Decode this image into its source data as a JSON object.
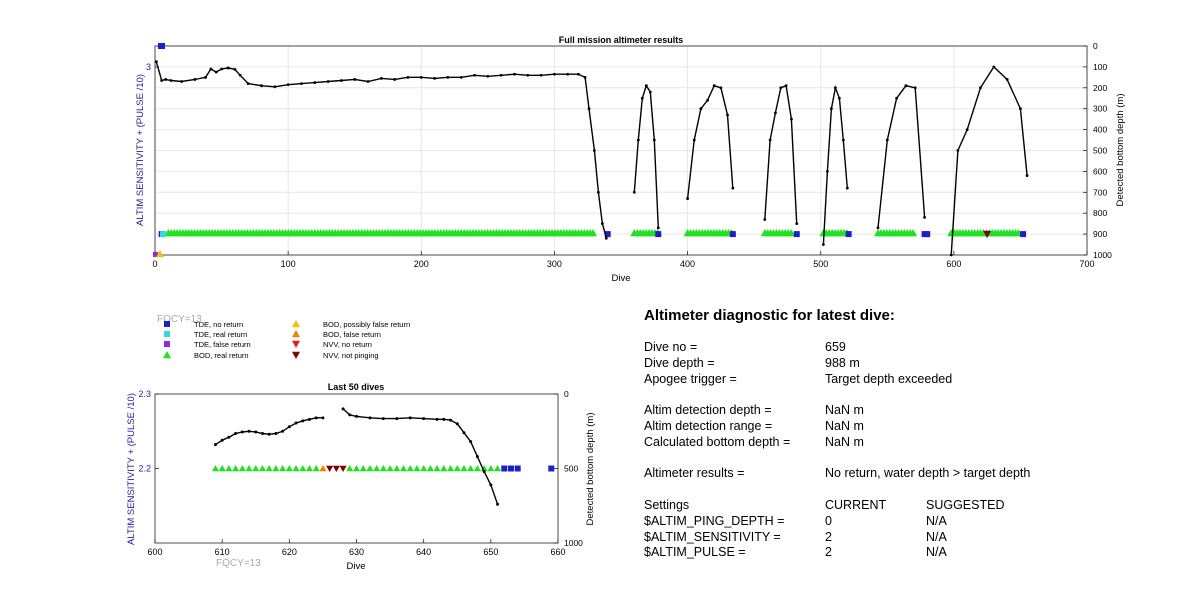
{
  "charts": {
    "top": {
      "title": "Full mission altimeter results",
      "xlabel": "Dive",
      "ylabel_left": "ALTIM SENSITIVITY + (PULSE /10)",
      "ylabel_right": "Detected bottom depth (m)",
      "xticks": [
        "0",
        "100",
        "200",
        "300",
        "400",
        "500",
        "600",
        "700"
      ],
      "yticks_right": [
        "0",
        "100",
        "200",
        "300",
        "400",
        "500",
        "600",
        "700",
        "800",
        "900",
        "1000"
      ],
      "yticks_left": [
        "3"
      ],
      "fqcy": "FQCY=13"
    },
    "bottom": {
      "title": "Last 50 dives",
      "xlabel": "Dive",
      "ylabel_left": "ALTIM SENSITIVITY + (PULSE /10)",
      "ylabel_right": "Detected bottom depth (m)",
      "xticks": [
        "600",
        "610",
        "620",
        "630",
        "640",
        "650",
        "660"
      ],
      "yticks_left": [
        "2.3",
        "2.2"
      ],
      "yticks_right": [
        "0",
        "500",
        "1000"
      ],
      "fqcy": "FQCY=13"
    }
  },
  "legend": [
    {
      "label": "TDE, no return",
      "symbol": "square",
      "color": "#1f1fc8"
    },
    {
      "label": "TDE, real return",
      "symbol": "square",
      "color": "#33d9e0"
    },
    {
      "label": "TDE, false return",
      "symbol": "square",
      "color": "#8a2be2"
    },
    {
      "label": "BOD, real return",
      "symbol": "triangle-up",
      "color": "#22e022"
    },
    {
      "label": "BOD, possibly false return",
      "symbol": "triangle-up",
      "color": "#f0c000"
    },
    {
      "label": "BOD, false return",
      "symbol": "triangle-up",
      "color": "#f08000"
    },
    {
      "label": "NVV, no return",
      "symbol": "triangle-down",
      "color": "#e02020"
    },
    {
      "label": "NVV, not pinging",
      "symbol": "triangle-down",
      "color": "#800000"
    }
  ],
  "colors": {
    "tde_no_return": "#1f1fc8",
    "bod_real": "#22e022",
    "nvv_not_pinging": "#800000",
    "nvv_no_return": "#e02020",
    "bod_false": "#f08000",
    "axis_left": "#1f1fa0",
    "depth_line": "#000000"
  },
  "chart_data": [
    {
      "type": "line",
      "title": "Full mission altimeter results",
      "xlabel": "Dive",
      "ylabel": "Detected bottom depth (m)",
      "xlim": [
        0,
        700
      ],
      "ylim_depth": [
        0,
        1000
      ],
      "depth_inverted": true,
      "grid": true,
      "depth_series": [
        {
          "x": [
            1,
            5,
            8,
            12,
            20,
            30,
            38,
            42,
            46,
            50,
            55,
            60,
            64,
            70,
            80,
            90,
            100,
            110,
            120,
            130,
            140,
            150,
            160,
            170,
            180,
            190,
            200,
            210,
            220,
            230,
            240,
            250,
            260,
            270,
            280,
            290,
            300,
            310,
            318,
            323,
            326,
            330,
            333,
            336,
            339
          ],
          "y": [
            75,
            165,
            160,
            165,
            170,
            160,
            150,
            110,
            125,
            110,
            105,
            112,
            140,
            180,
            190,
            195,
            185,
            180,
            175,
            170,
            165,
            160,
            170,
            155,
            160,
            150,
            150,
            155,
            150,
            150,
            140,
            145,
            140,
            135,
            140,
            140,
            135,
            135,
            135,
            150,
            300,
            500,
            700,
            850,
            920
          ]
        },
        {
          "x": [
            360,
            363,
            366,
            369,
            372,
            375,
            378
          ],
          "y": [
            700,
            450,
            250,
            190,
            220,
            450,
            870
          ]
        },
        {
          "x": [
            400,
            405,
            410,
            415,
            420,
            425,
            430,
            434
          ],
          "y": [
            730,
            450,
            300,
            260,
            190,
            200,
            330,
            680
          ]
        },
        {
          "x": [
            458,
            462,
            466,
            470,
            474,
            478,
            482
          ],
          "y": [
            830,
            450,
            320,
            200,
            190,
            350,
            850
          ]
        },
        {
          "x": [
            502,
            505,
            508,
            511,
            514,
            517,
            520
          ],
          "y": [
            950,
            600,
            300,
            200,
            250,
            450,
            680
          ]
        },
        {
          "x": [
            543,
            550,
            557,
            564,
            571,
            578
          ],
          "y": [
            870,
            450,
            250,
            190,
            200,
            820
          ]
        },
        {
          "x": [
            598,
            603,
            610,
            620,
            630,
            640,
            650,
            655
          ],
          "y": [
            1000,
            500,
            400,
            200,
            100,
            160,
            300,
            620
          ]
        }
      ],
      "altimeter_markers": {
        "bod_real_return_x_range": [
          [
            10,
            330
          ],
          [
            360,
            378
          ],
          [
            400,
            434
          ],
          [
            458,
            478
          ],
          [
            502,
            520
          ],
          [
            543,
            570
          ],
          [
            598,
            650
          ]
        ],
        "tde_no_return_x": [
          5,
          340,
          378,
          434,
          482,
          521,
          578,
          580,
          652
        ],
        "nvv_not_pinging_x": [
          625
        ]
      }
    },
    {
      "type": "line",
      "title": "Last 50 dives",
      "xlabel": "Dive",
      "ylabel": "Detected bottom depth (m)",
      "xlim": [
        600,
        660
      ],
      "ylim_depth": [
        0,
        1000
      ],
      "ylim_left": [
        2.1,
        2.3
      ],
      "depth_inverted": true,
      "depth_series": [
        {
          "x": [
            609,
            610,
            611,
            612,
            613,
            614,
            615,
            616,
            617,
            618,
            619,
            620,
            621,
            622,
            623,
            624,
            625
          ],
          "y": [
            340,
            310,
            290,
            265,
            255,
            250,
            255,
            265,
            270,
            265,
            250,
            220,
            195,
            180,
            170,
            160,
            160
          ]
        },
        {
          "x": [
            628,
            629,
            630,
            632,
            634,
            636,
            638,
            640,
            642,
            643,
            644,
            645,
            646,
            647,
            648,
            649,
            650,
            651
          ],
          "y": [
            100,
            140,
            150,
            160,
            165,
            165,
            160,
            165,
            170,
            170,
            175,
            200,
            260,
            320,
            420,
            520,
            610,
            740
          ]
        }
      ],
      "bod_real_return_x": [
        609,
        610,
        611,
        612,
        613,
        614,
        615,
        616,
        617,
        618,
        619,
        620,
        621,
        622,
        623,
        624,
        629,
        630,
        631,
        632,
        633,
        634,
        635,
        636,
        637,
        638,
        639,
        640,
        641,
        642,
        643,
        644,
        645,
        646,
        647,
        648,
        649,
        650,
        651
      ],
      "bod_false_return_x": [
        625
      ],
      "nvv_not_pinging_x": [
        626,
        627
      ],
      "nvv_no_return_x": [
        628
      ],
      "tde_no_return_x": [
        652,
        653,
        654,
        659
      ],
      "sensitivity_value": 2.2
    }
  ],
  "diagnostic": {
    "title": "Altimeter diagnostic for latest dive:",
    "rows": [
      {
        "k": "Dive no =",
        "v": "659"
      },
      {
        "k": "Dive depth =",
        "v": "988 m"
      },
      {
        "k": "Apogee trigger =",
        "v": "Target depth exceeded"
      },
      {
        "gap": true
      },
      {
        "k": "Altim detection depth =",
        "v": "NaN m"
      },
      {
        "k": "Altim detection range =",
        "v": "NaN m"
      },
      {
        "k": "Calculated bottom depth =",
        "v": "NaN m"
      },
      {
        "gap": true
      },
      {
        "k": "Altimeter results =",
        "v": "No return, water depth > target depth"
      },
      {
        "gap": true
      },
      {
        "k": "Settings",
        "v": "CURRENT",
        "v2": "SUGGESTED"
      },
      {
        "k": "$ALTIM_PING_DEPTH =",
        "v": "0",
        "v2": "N/A"
      },
      {
        "k": "$ALTIM_SENSITIVITY =",
        "v": "2",
        "v2": "N/A"
      },
      {
        "k": "$ALTIM_PULSE =",
        "v": "2",
        "v2": "N/A"
      }
    ]
  }
}
